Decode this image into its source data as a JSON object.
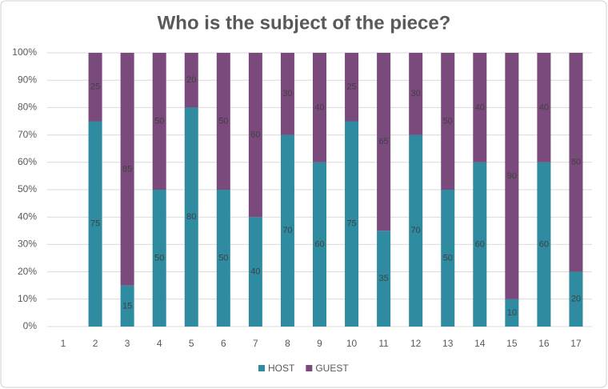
{
  "chart_data": {
    "type": "stacked_bar_percent",
    "title": "Who is the subject of the piece?",
    "categories": [
      "1",
      "2",
      "3",
      "4",
      "5",
      "6",
      "7",
      "8",
      "9",
      "10",
      "11",
      "12",
      "13",
      "14",
      "15",
      "16",
      "17"
    ],
    "series": [
      {
        "name": "HOST",
        "color": "#2e8ba0",
        "values": [
          null,
          75,
          15,
          50,
          80,
          50,
          40,
          70,
          60,
          75,
          35,
          70,
          50,
          60,
          10,
          60,
          20
        ]
      },
      {
        "name": "GUEST",
        "color": "#7b4a7d",
        "values": [
          null,
          25,
          85,
          50,
          20,
          50,
          60,
          30,
          40,
          25,
          65,
          30,
          50,
          40,
          90,
          40,
          80
        ]
      }
    ],
    "ylim": [
      0,
      100
    ],
    "yticks": [
      {
        "value": 0,
        "label": "0%"
      },
      {
        "value": 10,
        "label": "10%"
      },
      {
        "value": 20,
        "label": "20%"
      },
      {
        "value": 30,
        "label": "30%"
      },
      {
        "value": 40,
        "label": "40%"
      },
      {
        "value": 50,
        "label": "50%"
      },
      {
        "value": 60,
        "label": "60%"
      },
      {
        "value": 70,
        "label": "70%"
      },
      {
        "value": 80,
        "label": "80%"
      },
      {
        "value": 90,
        "label": "90%"
      },
      {
        "value": 100,
        "label": "100%"
      }
    ],
    "grid": true,
    "legend": "bottom"
  }
}
